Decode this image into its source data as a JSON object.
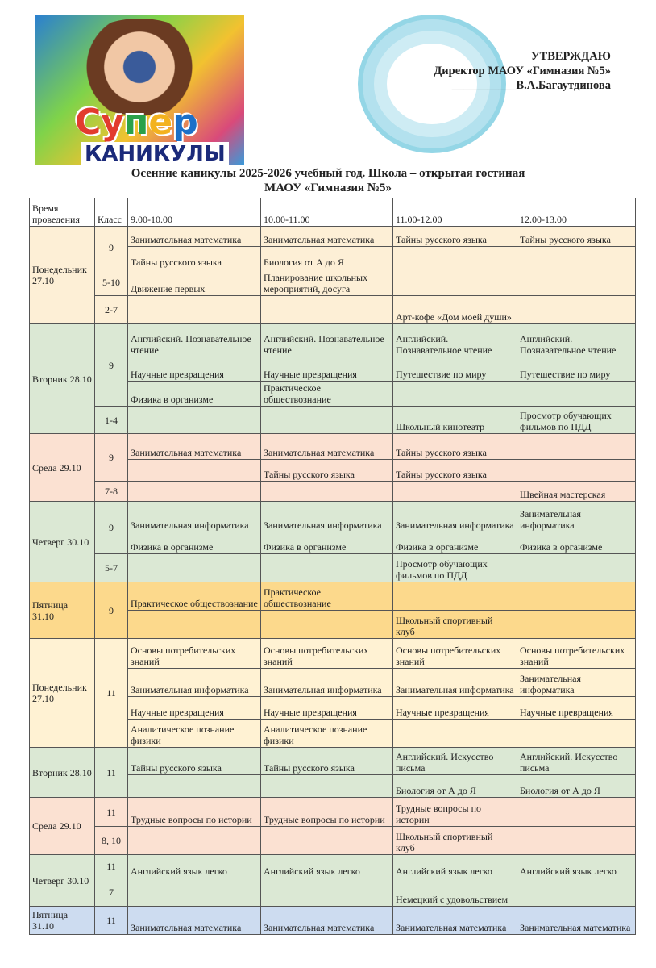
{
  "logo": {
    "line1": "Супер",
    "line2": "КАНИКУЛЫ"
  },
  "approval": {
    "title": "УТВЕРЖДАЮ",
    "position": "Директор МАОУ «Гимназия №5»",
    "name": "___________В.А.Багаутдинова"
  },
  "title": {
    "line1": "Осенние каникулы 2025-2026 учебный год. Школа – открытая гостиная",
    "line2": "МАОУ «Гимназия №5»"
  },
  "table": {
    "headers": [
      "Время проведения",
      "Класс",
      "9.00-10.00",
      "10.00-11.00",
      "11.00-12.00",
      "12.00-13.00"
    ],
    "days": [
      {
        "label": "Понедельник 27.10",
        "color": "#fdefd6",
        "groups": [
          {
            "class": "9",
            "rows": [
              [
                "Занимательная математика",
                "Занимательная математика",
                "Тайны русского языка",
                "Тайны русского языка"
              ],
              [
                "Тайны русского языка",
                "Биология от А до Я",
                "",
                ""
              ]
            ]
          },
          {
            "class": "5-10",
            "rows": [
              [
                "Движение первых",
                "Планирование школьных мероприятий, досуга",
                "",
                ""
              ]
            ]
          },
          {
            "class": "2-7",
            "rows": [
              [
                "",
                "",
                "Арт-кофе «Дом моей души»",
                ""
              ]
            ]
          }
        ]
      },
      {
        "label": "Вторник 28.10",
        "color": "#dbe8d4",
        "groups": [
          {
            "class": "9",
            "rows": [
              [
                "Английский. Познавательное чтение",
                "Английский. Познавательное чтение",
                "Английский. Познавательное чтение",
                "Английский. Познавательное чтение"
              ],
              [
                "Научные превращения",
                "Научные превращения",
                "Путешествие по миру",
                "Путешествие по миру"
              ],
              [
                "Физика в организме",
                "Практическое обществознание",
                "",
                ""
              ]
            ]
          },
          {
            "class": "1-4",
            "rows": [
              [
                "",
                "",
                "Школьный  кинотеатр",
                "Просмотр обучающих фильмов по ПДД"
              ]
            ]
          }
        ]
      },
      {
        "label": "Среда 29.10",
        "color": "#fbe1d2",
        "groups": [
          {
            "class": "9",
            "rows": [
              [
                "Занимательная математика",
                "Занимательная математика",
                "Тайны русского языка",
                ""
              ],
              [
                "",
                "Тайны русского языка",
                "Тайны русского языка",
                ""
              ]
            ]
          },
          {
            "class": "7-8",
            "rows": [
              [
                "",
                "",
                "",
                "Швейная мастерская"
              ]
            ]
          }
        ]
      },
      {
        "label": "Четверг 30.10",
        "color": "#dbe8d4",
        "groups": [
          {
            "class": "9",
            "rows": [
              [
                "Занимательная информатика",
                "Занимательная информатика",
                "Занимательная информатика",
                "Занимательная информатика"
              ],
              [
                "Физика в организме",
                "Физика в организме",
                "Физика в организме",
                "Физика в организме"
              ]
            ]
          },
          {
            "class": "5-7",
            "rows": [
              [
                "",
                "",
                "Просмотр обучающих фильмов по ПДД",
                ""
              ]
            ]
          }
        ]
      },
      {
        "label": "Пятница 31.10",
        "color": "#fcd98c",
        "groups": [
          {
            "class": "9",
            "rows": [
              [
                "Практическое обществознание",
                "Практическое обществознание",
                "",
                ""
              ],
              [
                "",
                "",
                "Школьный спортивный клуб",
                ""
              ]
            ]
          }
        ]
      },
      {
        "label": "Понедельник 27.10",
        "color": "#fff2d3",
        "groups": [
          {
            "class": "11",
            "rows": [
              [
                "Основы потребительских знаний",
                "Основы потребительских знаний",
                "Основы потребительских знаний",
                "Основы потребительских знаний"
              ],
              [
                "Занимательная информатика",
                "Занимательная информатика",
                "Занимательная информатика",
                "Занимательная информатика"
              ],
              [
                "Научные превращения",
                "Научные превращения",
                "Научные превращения",
                "Научные превращения"
              ],
              [
                "Аналитическое познание физики",
                "Аналитическое познание физики",
                "",
                ""
              ]
            ]
          }
        ]
      },
      {
        "label": "Вторник 28.10",
        "color": "#dbe8d4",
        "groups": [
          {
            "class": "11",
            "rows": [
              [
                "Тайны русского языка",
                "Тайны русского языка",
                "Английский. Искусство письма",
                "Английский. Искусство письма"
              ],
              [
                "",
                "",
                "Биология от А до Я",
                "Биология от А до Я"
              ]
            ]
          }
        ]
      },
      {
        "label": "Среда 29.10",
        "color": "#fbe1d2",
        "groups": [
          {
            "class": "11",
            "rows": [
              [
                "Трудные вопросы по истории",
                "Трудные вопросы по истории",
                "Трудные вопросы по истории",
                ""
              ]
            ]
          },
          {
            "class": "8, 10",
            "rows": [
              [
                "",
                "",
                "Школьный спортивный клуб",
                ""
              ]
            ]
          }
        ]
      },
      {
        "label": "Четверг 30.10",
        "color": "#dbe8d4",
        "groups": [
          {
            "class": "11",
            "rows": [
              [
                "Английский язык легко",
                "Английский язык легко",
                "Английский язык легко",
                "Английский язык легко"
              ]
            ]
          },
          {
            "class": "7",
            "rows": [
              [
                "",
                "",
                "Немецкий с удовольствием",
                ""
              ]
            ]
          }
        ]
      },
      {
        "label": "Пятница 31.10",
        "color": "#cddcf0",
        "groups": [
          {
            "class": "11",
            "rows": [
              [
                "Занимательная математика",
                "Занимательная математика",
                "Занимательная математика",
                "Занимательная математика"
              ]
            ]
          }
        ]
      }
    ]
  }
}
